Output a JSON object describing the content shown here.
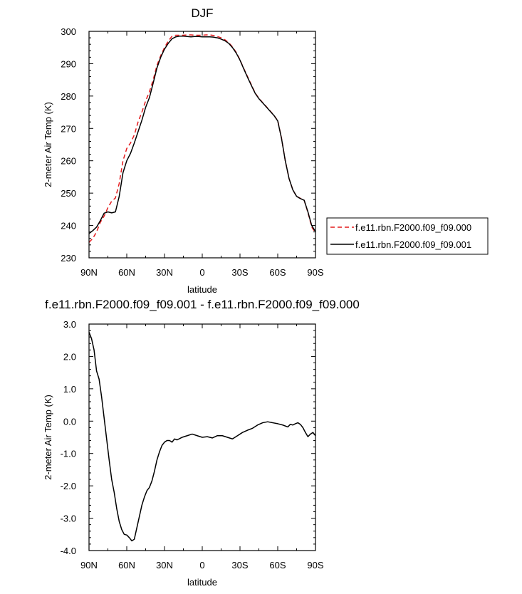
{
  "chart_data": [
    {
      "type": "line",
      "title": "DJF",
      "xlabel": "latitude",
      "ylabel": "2-meter Air Temp (K)",
      "xlim": [
        90,
        -90
      ],
      "ylim": [
        230,
        300
      ],
      "x_ticks": [
        90,
        60,
        30,
        0,
        -30,
        -60,
        -90
      ],
      "x_tick_labels": [
        "90N",
        "60N",
        "30N",
        "0",
        "30S",
        "60S",
        "90S"
      ],
      "y_ticks": [
        230,
        240,
        250,
        260,
        270,
        280,
        290,
        300
      ],
      "y_tick_labels": [
        "230",
        "240",
        "250",
        "260",
        "270",
        "280",
        "290",
        "300"
      ],
      "grid": false,
      "legend_position": "right",
      "series": [
        {
          "name": "f.e11.rbn.F2000.f09_f09.000",
          "color": "#e41a1c",
          "dash": "dashed",
          "x": [
            90,
            87,
            84,
            81,
            78,
            75,
            72,
            69,
            66,
            63,
            60,
            57,
            54,
            51,
            48,
            45,
            42,
            39,
            36,
            33,
            30,
            27,
            24,
            21,
            18,
            15,
            12,
            9,
            6,
            3,
            0,
            -3,
            -6,
            -9,
            -12,
            -15,
            -18,
            -21,
            -24,
            -27,
            -30,
            -33,
            -36,
            -39,
            -42,
            -45,
            -48,
            -51,
            -54,
            -57,
            -60,
            -63,
            -66,
            -69,
            -72,
            -75,
            -78,
            -81,
            -84,
            -87,
            -90
          ],
          "y": [
            234.8,
            236,
            238,
            241,
            242.9,
            245.5,
            247.5,
            248.5,
            253,
            260,
            263.8,
            265.5,
            268,
            272,
            275,
            278.5,
            281.3,
            285,
            289.5,
            292.5,
            295,
            297,
            298.5,
            298.8,
            298.8,
            298.8,
            298.9,
            298.9,
            298.8,
            298.8,
            298.8,
            298.9,
            298.9,
            298.7,
            298.4,
            298,
            297.4,
            296.5,
            295.2,
            293.5,
            291.2,
            288.5,
            286,
            283.5,
            281,
            279.3,
            278,
            276.7,
            275.4,
            274,
            272.4,
            267,
            260,
            254.5,
            251,
            249,
            248.4,
            247.8,
            244,
            239.5,
            237.8
          ]
        },
        {
          "name": "f.e11.rbn.F2000.f09_f09.001",
          "color": "#000000",
          "dash": "solid",
          "x": [
            90,
            87,
            84,
            81,
            78,
            75,
            72,
            69,
            66,
            63,
            60,
            57,
            54,
            51,
            48,
            45,
            42,
            39,
            36,
            33,
            30,
            27,
            24,
            21,
            18,
            15,
            12,
            9,
            6,
            3,
            0,
            -3,
            -6,
            -9,
            -12,
            -15,
            -18,
            -21,
            -24,
            -27,
            -30,
            -33,
            -36,
            -39,
            -42,
            -45,
            -48,
            -51,
            -54,
            -57,
            -60,
            -63,
            -66,
            -69,
            -72,
            -75,
            -78,
            -81,
            -84,
            -87,
            -90
          ],
          "y": [
            237.5,
            238.4,
            239.5,
            241.5,
            243.8,
            244.2,
            243.9,
            244.2,
            249,
            256.3,
            260,
            262.3,
            265.5,
            269,
            272.5,
            276.5,
            279.5,
            284,
            288.7,
            292,
            294.5,
            296.3,
            297.7,
            298.3,
            298.5,
            298.5,
            298.4,
            298.3,
            298.4,
            298.4,
            298.3,
            298.3,
            298.3,
            298.2,
            298,
            297.6,
            297.1,
            296.3,
            295,
            293.3,
            291.1,
            288.4,
            285.8,
            283.3,
            280.9,
            279.2,
            277.9,
            276.6,
            275.3,
            274,
            272.3,
            266.9,
            260,
            254.5,
            251,
            249,
            248.3,
            247.8,
            244.2,
            240,
            238.1
          ]
        }
      ]
    },
    {
      "type": "line",
      "title": "f.e11.rbn.F2000.f09_f09.001 - f.e11.rbn.F2000.f09_f09.000",
      "xlabel": "latitude",
      "ylabel": "2-meter Air Temp (K)",
      "xlim": [
        90,
        -90
      ],
      "ylim": [
        -4,
        3
      ],
      "x_ticks": [
        90,
        60,
        30,
        0,
        -30,
        -60,
        -90
      ],
      "x_tick_labels": [
        "90N",
        "60N",
        "30N",
        "0",
        "30S",
        "60S",
        "90S"
      ],
      "y_ticks": [
        -4,
        -3,
        -2,
        -1,
        0,
        1,
        2,
        3
      ],
      "y_tick_labels": [
        "-4.0",
        "-3.0",
        "-2.0",
        "-1.0",
        "0.0",
        "1.0",
        "2.0",
        "3.0"
      ],
      "grid": false,
      "series": [
        {
          "color": "#000000",
          "dash": "solid",
          "x": [
            90,
            88,
            86,
            84,
            82,
            80,
            78,
            76,
            74,
            72,
            70,
            68,
            66,
            64,
            62,
            60,
            58,
            56,
            54,
            52,
            50,
            48,
            46,
            44,
            42,
            40,
            38,
            36,
            34,
            32,
            30,
            28,
            26,
            24,
            22,
            20,
            16,
            12,
            8,
            4,
            0,
            -4,
            -8,
            -12,
            -16,
            -20,
            -24,
            -28,
            -32,
            -36,
            -40,
            -44,
            -48,
            -52,
            -56,
            -60,
            -64,
            -68,
            -70,
            -72,
            -74,
            -76,
            -78,
            -80,
            -82,
            -84,
            -86,
            -88,
            -90
          ],
          "y": [
            2.75,
            2.55,
            2.2,
            1.55,
            1.3,
            0.75,
            0.1,
            -0.55,
            -1.2,
            -1.8,
            -2.2,
            -2.7,
            -3.1,
            -3.35,
            -3.5,
            -3.52,
            -3.6,
            -3.7,
            -3.65,
            -3.3,
            -2.95,
            -2.6,
            -2.35,
            -2.15,
            -2.05,
            -1.85,
            -1.55,
            -1.2,
            -0.95,
            -0.75,
            -0.65,
            -0.6,
            -0.6,
            -0.65,
            -0.55,
            -0.58,
            -0.5,
            -0.45,
            -0.4,
            -0.45,
            -0.5,
            -0.48,
            -0.52,
            -0.45,
            -0.45,
            -0.5,
            -0.55,
            -0.45,
            -0.35,
            -0.28,
            -0.22,
            -0.12,
            -0.05,
            -0.02,
            -0.05,
            -0.08,
            -0.12,
            -0.18,
            -0.1,
            -0.12,
            -0.08,
            -0.05,
            -0.1,
            -0.2,
            -0.35,
            -0.48,
            -0.4,
            -0.35,
            -0.45
          ]
        }
      ]
    }
  ]
}
